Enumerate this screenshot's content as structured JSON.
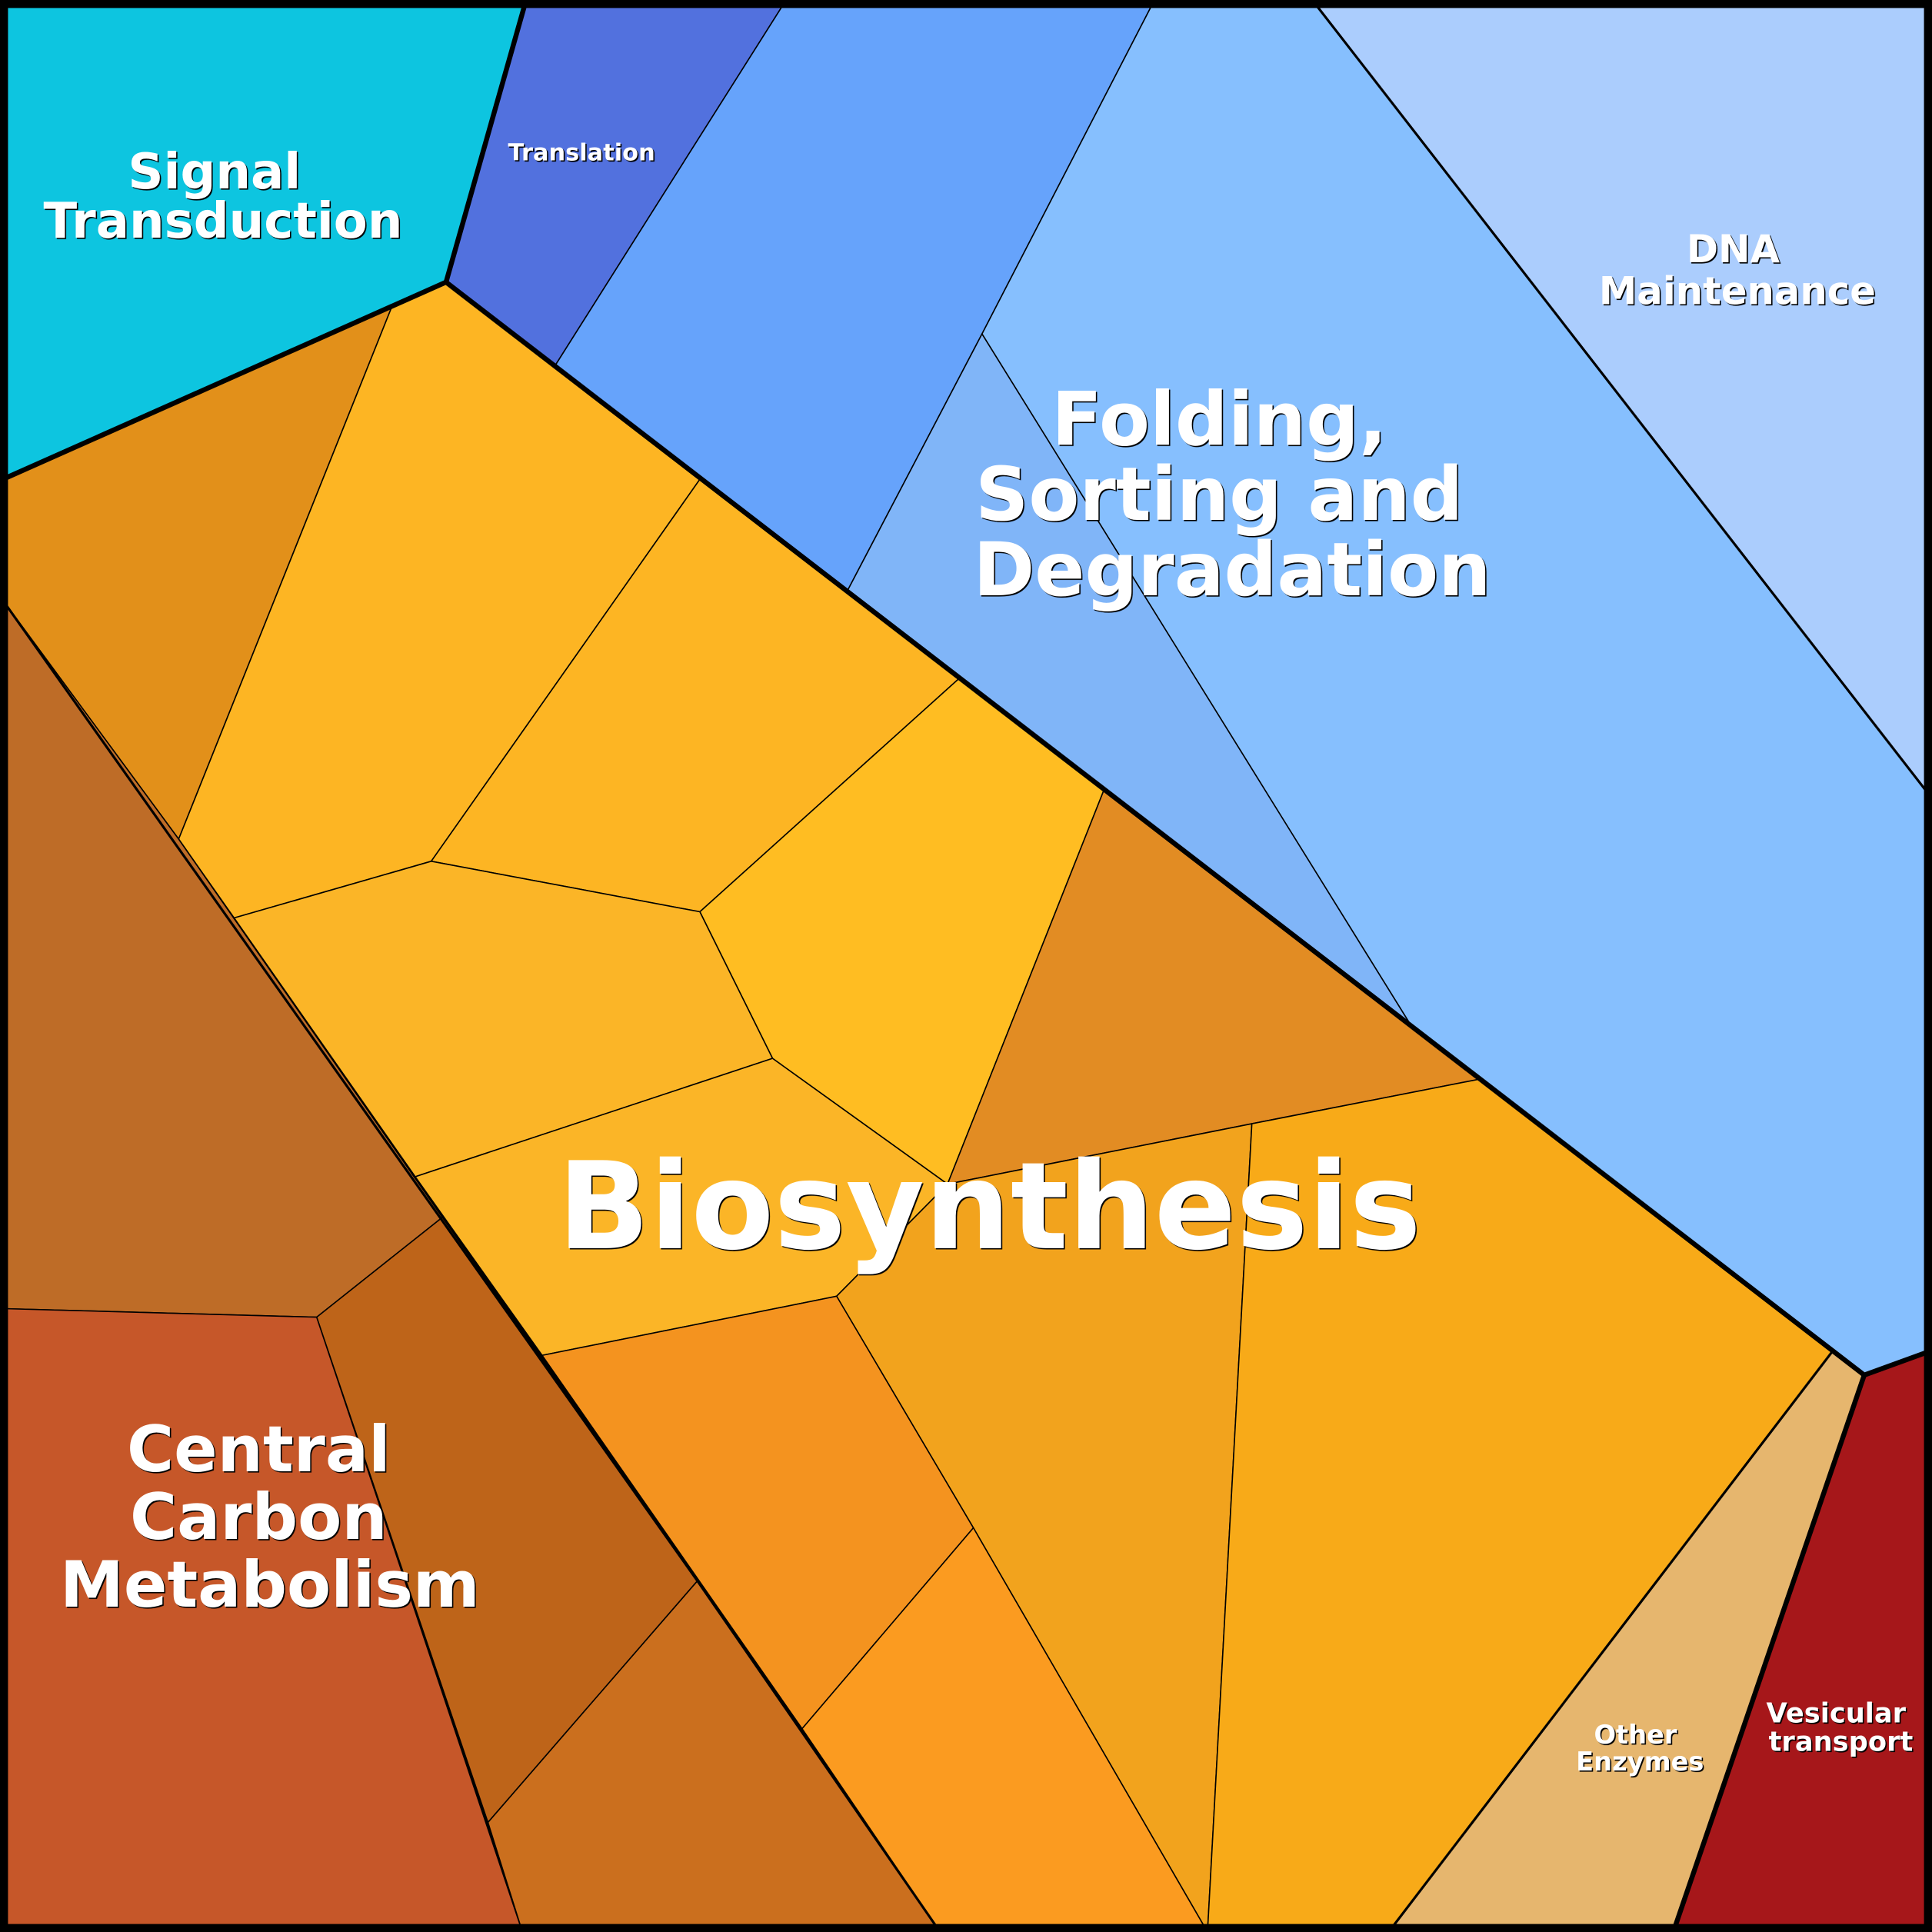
{
  "diagram": {
    "type": "voronoi-treemap",
    "groups": [
      {
        "label": [
          "Signal",
          "Transduction"
        ],
        "color": "#0dc5e0"
      },
      {
        "label": [
          "Translation"
        ],
        "color": "#5271de"
      },
      {
        "label": [
          "Folding,",
          "Sorting and",
          "Degradation"
        ],
        "colors": [
          "#66a3fb",
          "#86bffe",
          "#80b5f8"
        ]
      },
      {
        "label": [
          "DNA",
          "Maintenance"
        ],
        "color": "#abcdfd"
      },
      {
        "label": [
          "Biosynthesis"
        ],
        "colors": [
          "#e2901a",
          "#fdb523",
          "#fdb523",
          "#ffbd22",
          "#e28c23",
          "#fbb527",
          "#fbb527",
          "#f2a31d",
          "#f8aa18",
          "#f4931f",
          "#fb9b20",
          "#cb6f1e"
        ]
      },
      {
        "label": [
          "Central",
          "Carbon",
          "Metabolism"
        ],
        "colors": [
          "#be6c27",
          "#be6419",
          "#c65729"
        ]
      },
      {
        "label": [
          "Other",
          "Enzymes"
        ],
        "color": "#e6b66e"
      },
      {
        "label": [
          "Vesicular",
          "transport"
        ],
        "color": "#a6171a"
      }
    ]
  }
}
